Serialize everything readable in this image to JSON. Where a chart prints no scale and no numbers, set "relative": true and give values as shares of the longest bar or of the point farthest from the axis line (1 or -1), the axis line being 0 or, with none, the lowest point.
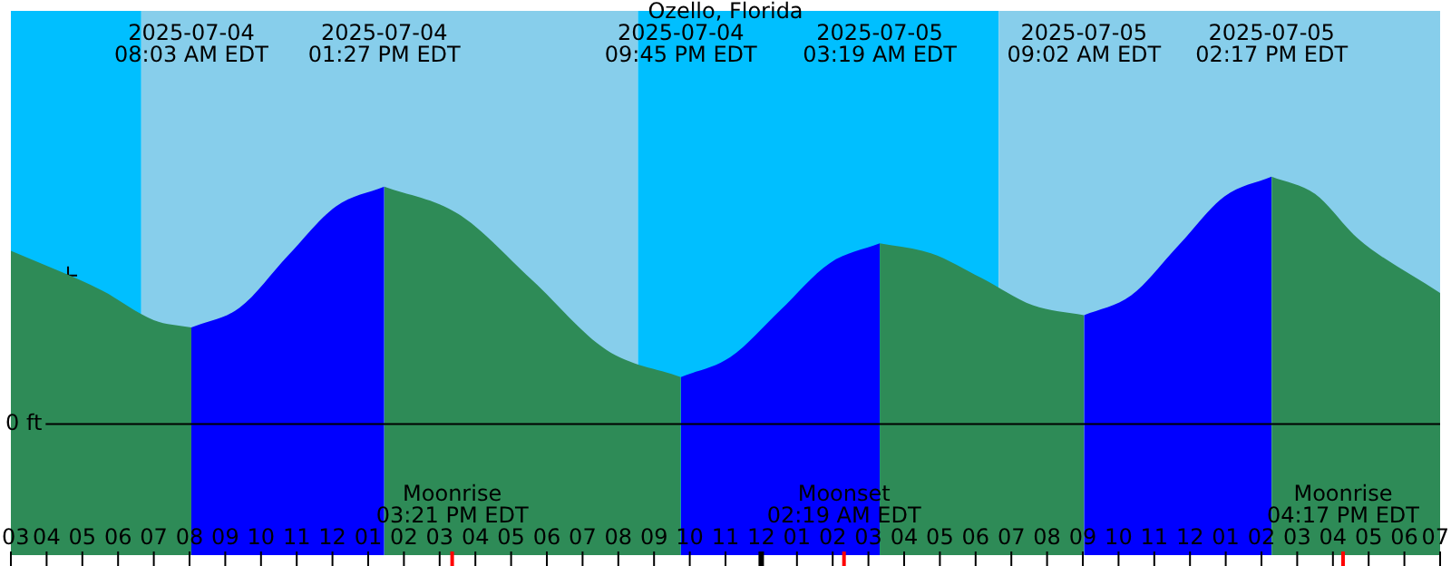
{
  "chart_data": {
    "type": "area",
    "title": "Ozello, Florida",
    "relative": true,
    "xlim": [
      "2025-07-04T03:00",
      "2025-07-05T19:00"
    ],
    "xticks": [
      {
        "value": "2025-07-04T03:00",
        "label": "03"
      },
      {
        "value": "2025-07-04T04:00",
        "label": "04"
      },
      {
        "value": "2025-07-04T05:00",
        "label": "05"
      },
      {
        "value": "2025-07-04T06:00",
        "label": "06"
      },
      {
        "value": "2025-07-04T07:00",
        "label": "07"
      },
      {
        "value": "2025-07-04T08:00",
        "label": "08"
      },
      {
        "value": "2025-07-04T09:00",
        "label": "09"
      },
      {
        "value": "2025-07-04T10:00",
        "label": "10"
      },
      {
        "value": "2025-07-04T11:00",
        "label": "11"
      },
      {
        "value": "2025-07-04T12:00",
        "label": "12"
      },
      {
        "value": "2025-07-04T13:00",
        "label": "01"
      },
      {
        "value": "2025-07-04T14:00",
        "label": "02"
      },
      {
        "value": "2025-07-04T15:00",
        "label": "03"
      },
      {
        "value": "2025-07-04T16:00",
        "label": "04"
      },
      {
        "value": "2025-07-04T17:00",
        "label": "05"
      },
      {
        "value": "2025-07-04T18:00",
        "label": "06"
      },
      {
        "value": "2025-07-04T19:00",
        "label": "07"
      },
      {
        "value": "2025-07-04T20:00",
        "label": "08"
      },
      {
        "value": "2025-07-04T21:00",
        "label": "09"
      },
      {
        "value": "2025-07-04T22:00",
        "label": "10"
      },
      {
        "value": "2025-07-04T23:00",
        "label": "11"
      },
      {
        "value": "2025-07-05T00:00",
        "label": "12"
      },
      {
        "value": "2025-07-05T01:00",
        "label": "01"
      },
      {
        "value": "2025-07-05T02:00",
        "label": "02"
      },
      {
        "value": "2025-07-05T03:00",
        "label": "03"
      },
      {
        "value": "2025-07-05T04:00",
        "label": "04"
      },
      {
        "value": "2025-07-05T05:00",
        "label": "05"
      },
      {
        "value": "2025-07-05T06:00",
        "label": "06"
      },
      {
        "value": "2025-07-05T07:00",
        "label": "07"
      },
      {
        "value": "2025-07-05T08:00",
        "label": "08"
      },
      {
        "value": "2025-07-05T09:00",
        "label": "09"
      },
      {
        "value": "2025-07-05T10:00",
        "label": "10"
      },
      {
        "value": "2025-07-05T11:00",
        "label": "11"
      },
      {
        "value": "2025-07-05T12:00",
        "label": "12"
      },
      {
        "value": "2025-07-05T13:00",
        "label": "01"
      },
      {
        "value": "2025-07-05T14:00",
        "label": "02"
      },
      {
        "value": "2025-07-05T15:00",
        "label": "03"
      },
      {
        "value": "2025-07-05T16:00",
        "label": "04"
      },
      {
        "value": "2025-07-05T17:00",
        "label": "05"
      },
      {
        "value": "2025-07-05T18:00",
        "label": "06"
      },
      {
        "value": "2025-07-05T19:00",
        "label": "07"
      }
    ],
    "series": [
      {
        "color": "#2e8b57",
        "x": [
          "2025-07-04T03:00",
          "2025-07-04T05:33",
          "2025-07-04T07:00",
          "2025-07-04T08:03",
          "2025-07-04T10:45",
          "2025-07-04T13:27",
          "2025-07-04T15:31",
          "2025-07-04T17:36",
          "2025-07-04T19:40",
          "2025-07-04T21:45",
          "2025-07-05T00:32",
          "2025-07-05T03:19",
          "2025-07-05T04:45",
          "2025-07-05T06:10",
          "2025-07-05T07:36",
          "2025-07-05T09:02",
          "2025-07-05T11:40",
          "2025-07-05T14:17",
          "2025-07-05T15:30",
          "2025-07-05T16:42",
          "2025-07-05T19:00"
        ],
        "values": [
          0.7,
          0.54,
          0.42,
          0.39,
          null,
          0.96,
          0.85,
          0.58,
          0.3,
          0.19,
          null,
          0.73,
          0.69,
          0.59,
          0.48,
          0.44,
          null,
          1.0,
          0.93,
          0.75,
          0.53
        ]
      },
      {
        "color": "#0000ff",
        "x": [
          "2025-07-04T08:03",
          "2025-07-04T09:24",
          "2025-07-04T10:45",
          "2025-07-04T12:06",
          "2025-07-04T13:27",
          "2025-07-04T17:36",
          "2025-07-04T21:45",
          "2025-07-04T23:08",
          "2025-07-05T00:32",
          "2025-07-05T01:55",
          "2025-07-05T03:19",
          "2025-07-05T06:10",
          "2025-07-05T09:02",
          "2025-07-05T10:21",
          "2025-07-05T11:40",
          "2025-07-05T12:58",
          "2025-07-05T14:17"
        ],
        "values": [
          0.39,
          0.47,
          0.68,
          0.88,
          0.96,
          null,
          0.19,
          0.27,
          0.46,
          0.65,
          0.73,
          null,
          0.44,
          0.52,
          0.72,
          0.92,
          1.0
        ]
      },
      {
        "type": "scatter",
        "color": "#000000",
        "marker": "cross",
        "x": [
          "2025-07-04T04:36"
        ],
        "values": [
          0.6
        ]
      }
    ],
    "bands": [
      {
        "axis": "x",
        "from": "2025-07-04T03:00",
        "to": "2025-07-04T06:39",
        "color": "#00bfff"
      },
      {
        "axis": "x",
        "from": "2025-07-04T06:39",
        "to": "2025-07-04T20:33",
        "color": "#87ceeb"
      },
      {
        "axis": "x",
        "from": "2025-07-04T20:33",
        "to": "2025-07-05T06:39",
        "color": "#00bfff"
      },
      {
        "axis": "x",
        "from": "2025-07-05T06:39",
        "to": "2025-07-05T19:00",
        "color": "#87ceeb"
      }
    ],
    "ref_lines": [
      {
        "axis": "y",
        "value": 0,
        "label": "0 ft",
        "color": "#000000"
      },
      {
        "axis": "x",
        "value": "2025-07-04T15:21",
        "label": "Moonrise\n03:21 PM EDT",
        "color": "#ff0000"
      },
      {
        "axis": "x",
        "value": "2025-07-05T02:19",
        "label": "Moonset\n02:19 AM EDT",
        "color": "#ff0000"
      },
      {
        "axis": "x",
        "value": "2025-07-05T16:17",
        "label": "Moonrise\n04:17 PM EDT",
        "color": "#ff0000"
      }
    ],
    "annotations": [
      "2025-07-04\n08:03 AM EDT",
      "2025-07-04\n01:27 PM EDT",
      "2025-07-04\n09:45 PM EDT",
      "2025-07-05\n03:19 AM EDT",
      "2025-07-05\n09:02 AM EDT",
      "2025-07-05\n02:17 PM EDT"
    ],
    "grid": false,
    "legend": false
  }
}
